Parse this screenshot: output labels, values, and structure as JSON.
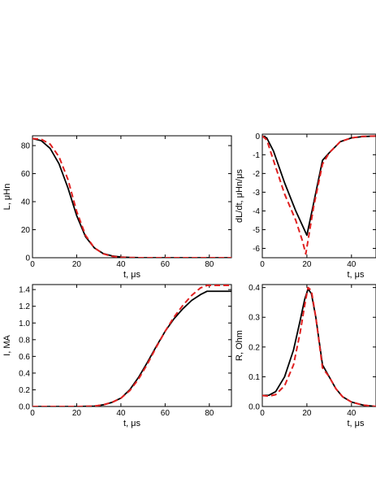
{
  "chart_data": [
    {
      "type": "line",
      "xlabel": "t, μs",
      "ylabel": "L, μHn",
      "xlim": [
        0,
        90
      ],
      "ylim": [
        0,
        87
      ],
      "xticks": [
        0,
        20,
        40,
        60,
        80
      ],
      "yticks": [
        0,
        20,
        40,
        60,
        80
      ],
      "series": [
        {
          "color": "#000000",
          "dash": "solid",
          "x": [
            0,
            4,
            8,
            12,
            16,
            20,
            24,
            28,
            32,
            36,
            40,
            44,
            50,
            60,
            70,
            80,
            90
          ],
          "y": [
            85,
            83.5,
            78,
            67,
            50,
            30,
            15,
            7,
            3,
            1.3,
            0.5,
            0.2,
            0,
            0,
            0,
            0,
            0
          ]
        },
        {
          "color": "#e02020",
          "dash": "dashed",
          "x": [
            0,
            4,
            8,
            12,
            16,
            20,
            24,
            28,
            32,
            36,
            40,
            44,
            50,
            60,
            70,
            80,
            90
          ],
          "y": [
            85,
            84.5,
            81,
            72,
            56,
            33,
            16,
            7,
            2.8,
            1.0,
            0.3,
            0.1,
            0,
            0,
            0,
            0,
            0
          ]
        }
      ]
    },
    {
      "type": "line",
      "xlabel": "t, μs",
      "ylabel": "dL/dt, μHn/μs",
      "xlim": [
        0,
        51
      ],
      "ylim": [
        -6.5,
        0.1
      ],
      "xticks": [
        0,
        20,
        40
      ],
      "yticks": [
        0,
        -1,
        -2,
        -3,
        -4,
        -5,
        -6
      ],
      "series": [
        {
          "color": "#000000",
          "dash": "solid",
          "x": [
            0,
            2,
            5,
            10,
            15,
            20,
            23,
            27,
            30,
            35,
            40,
            45,
            51
          ],
          "y": [
            0,
            -0.1,
            -0.8,
            -2.5,
            -4.0,
            -5.3,
            -3.6,
            -1.3,
            -0.9,
            -0.3,
            -0.1,
            -0.03,
            0
          ]
        },
        {
          "color": "#e02020",
          "dash": "dashed",
          "x": [
            0,
            2,
            5,
            10,
            15,
            18,
            19.5,
            23,
            27,
            30,
            35,
            40,
            45,
            51
          ],
          "y": [
            0,
            -0.2,
            -1.3,
            -3.1,
            -4.5,
            -5.6,
            -6.3,
            -3.8,
            -1.5,
            -0.9,
            -0.3,
            -0.1,
            -0.02,
            0
          ]
        }
      ]
    },
    {
      "type": "line",
      "xlabel": "t, μs",
      "ylabel": "I, MA",
      "xlim": [
        0,
        90
      ],
      "ylim": [
        0,
        1.46
      ],
      "xticks": [
        0,
        20,
        40,
        60,
        80
      ],
      "yticks": [
        0.0,
        0.2,
        0.4,
        0.6,
        0.8,
        1.0,
        1.2,
        1.4
      ],
      "series": [
        {
          "color": "#000000",
          "dash": "solid",
          "x": [
            0,
            20,
            28,
            32,
            36,
            40,
            44,
            48,
            52,
            56,
            60,
            64,
            68,
            72,
            76,
            79,
            90
          ],
          "y": [
            0,
            0,
            0.005,
            0.02,
            0.05,
            0.1,
            0.2,
            0.35,
            0.53,
            0.72,
            0.9,
            1.05,
            1.17,
            1.27,
            1.34,
            1.38,
            1.38
          ]
        },
        {
          "color": "#e02020",
          "dash": "dashed",
          "x": [
            0,
            20,
            28,
            32,
            36,
            40,
            44,
            48,
            52,
            56,
            60,
            64,
            68,
            72,
            76,
            79,
            90
          ],
          "y": [
            0,
            0,
            0.005,
            0.02,
            0.05,
            0.1,
            0.19,
            0.33,
            0.51,
            0.71,
            0.9,
            1.07,
            1.21,
            1.33,
            1.42,
            1.45,
            1.45
          ]
        }
      ]
    },
    {
      "type": "line",
      "xlabel": "t, μs",
      "ylabel": "R, Ohm",
      "xlim": [
        0,
        51
      ],
      "ylim": [
        0,
        0.41
      ],
      "xticks": [
        0,
        20,
        40
      ],
      "yticks": [
        0.0,
        0.1,
        0.2,
        0.3,
        0.4
      ],
      "series": [
        {
          "color": "#000000",
          "dash": "solid",
          "x": [
            0,
            3,
            6,
            10,
            14,
            17,
            19,
            20.5,
            22,
            24,
            27,
            30,
            33,
            36,
            40,
            45,
            51
          ],
          "y": [
            0.037,
            0.038,
            0.05,
            0.1,
            0.19,
            0.29,
            0.36,
            0.395,
            0.38,
            0.3,
            0.14,
            0.1,
            0.06,
            0.033,
            0.015,
            0.005,
            0
          ]
        },
        {
          "color": "#e02020",
          "dash": "dashed",
          "x": [
            0,
            3,
            6,
            10,
            14,
            17,
            19,
            20.5,
            22,
            24,
            27,
            30,
            33,
            36,
            40,
            45,
            51
          ],
          "y": [
            0.037,
            0.035,
            0.04,
            0.07,
            0.14,
            0.25,
            0.34,
            0.4,
            0.39,
            0.3,
            0.13,
            0.1,
            0.06,
            0.033,
            0.015,
            0.005,
            0
          ]
        }
      ]
    }
  ]
}
